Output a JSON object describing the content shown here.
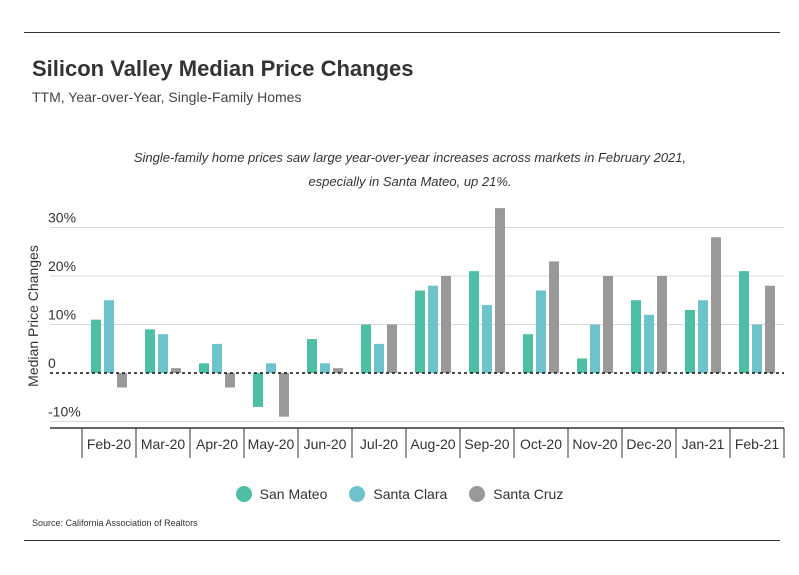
{
  "header": {
    "title": "Silicon Valley Median Price Changes",
    "subtitle": "TTM, Year-over-Year, Single-Family Homes"
  },
  "annotation": {
    "line1": "Single-family home prices saw large year-over-year increases across markets in February 2021,",
    "line2": "especially in Santa Mateo, up 21%."
  },
  "colors": {
    "san_mateo": "#4dbfa4",
    "santa_clara": "#6cc3cc",
    "santa_cruz": "#999999",
    "grid": "#d9d9d9",
    "axis": "#333333"
  },
  "legend": [
    {
      "label": "San Mateo",
      "color": "#4dbfa4"
    },
    {
      "label": "Santa Clara",
      "color": "#6cc3cc"
    },
    {
      "label": "Santa Cruz",
      "color": "#999999"
    }
  ],
  "source": "Source:  California Association of Realtors",
  "chart_data": {
    "type": "bar",
    "title": "Silicon Valley Median Price Changes",
    "subtitle": "TTM, Year-over-Year, Single-Family Homes",
    "xlabel": "",
    "ylabel": "Median Price Changes",
    "ylim": [
      -10,
      35
    ],
    "yticks": [
      -10,
      0,
      10,
      20,
      30
    ],
    "ytick_labels": [
      "-10%",
      "0",
      "10%",
      "20%",
      "30%"
    ],
    "grid": true,
    "legend_position": "bottom",
    "categories": [
      "Feb-20",
      "Mar-20",
      "Apr-20",
      "May-20",
      "Jun-20",
      "Jul-20",
      "Aug-20",
      "Sep-20",
      "Oct-20",
      "Nov-20",
      "Dec-20",
      "Jan-21",
      "Feb-21"
    ],
    "series": [
      {
        "name": "San Mateo",
        "values": [
          11,
          9,
          2,
          -7,
          7,
          10,
          17,
          21,
          8,
          3,
          15,
          13,
          21
        ]
      },
      {
        "name": "Santa Clara",
        "values": [
          15,
          8,
          6,
          2,
          2,
          6,
          18,
          14,
          17,
          10,
          12,
          15,
          10
        ]
      },
      {
        "name": "Santa Cruz",
        "values": [
          -3,
          1,
          -3,
          -9,
          1,
          10,
          20,
          34,
          23,
          20,
          20,
          28,
          18
        ]
      }
    ]
  }
}
